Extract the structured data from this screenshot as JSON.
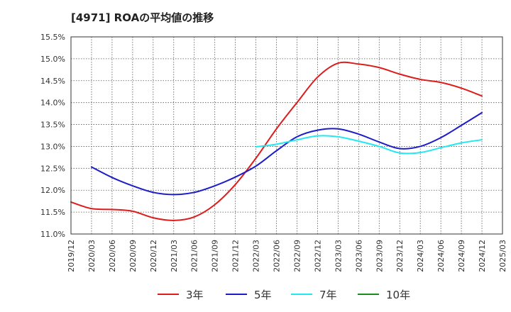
{
  "title": "[4971]  ROAの平均値の推移",
  "chart_data": {
    "type": "line",
    "title": "[4971]  ROAの平均値の推移",
    "xlabel": "",
    "ylabel": "",
    "ylim": [
      11.0,
      15.5
    ],
    "yticks": [
      "15.5%",
      "15.0%",
      "14.5%",
      "14.0%",
      "13.5%",
      "13.0%",
      "12.5%",
      "12.0%",
      "11.5%",
      "11.0%"
    ],
    "ytick_values": [
      15.5,
      15.0,
      14.5,
      14.0,
      13.5,
      13.0,
      12.5,
      12.0,
      11.5,
      11.0
    ],
    "x_categories": [
      "2019/12",
      "2020/03",
      "2020/06",
      "2020/09",
      "2020/12",
      "2021/03",
      "2021/06",
      "2021/09",
      "2021/12",
      "2022/03",
      "2022/06",
      "2022/09",
      "2022/12",
      "2023/03",
      "2023/06",
      "2023/09",
      "2023/12",
      "2024/03",
      "2024/06",
      "2024/09",
      "2024/12",
      "2025/03"
    ],
    "grid": true,
    "legend_position": "bottom",
    "series": [
      {
        "name": "3年",
        "color": "#dd1c1c",
        "values": [
          11.73,
          11.58,
          11.56,
          11.52,
          11.37,
          11.31,
          11.39,
          11.67,
          12.13,
          12.73,
          13.4,
          14.0,
          14.58,
          14.9,
          14.88,
          14.8,
          14.65,
          14.53,
          14.46,
          14.33,
          14.15,
          null
        ]
      },
      {
        "name": "5年",
        "color": "#1c1cc8",
        "values": [
          null,
          12.53,
          12.29,
          12.1,
          11.95,
          11.9,
          11.95,
          12.1,
          12.3,
          12.55,
          12.9,
          13.22,
          13.37,
          13.4,
          13.28,
          13.1,
          12.95,
          13.0,
          13.2,
          13.48,
          13.77,
          null
        ]
      },
      {
        "name": "7年",
        "color": "#22e8f0",
        "values": [
          null,
          null,
          null,
          null,
          null,
          null,
          null,
          null,
          null,
          12.99,
          13.05,
          13.15,
          13.24,
          13.22,
          13.12,
          13.0,
          12.85,
          12.86,
          12.97,
          13.08,
          13.15,
          null
        ]
      },
      {
        "name": "10年",
        "color": "#1c8c1c",
        "values": []
      }
    ]
  }
}
